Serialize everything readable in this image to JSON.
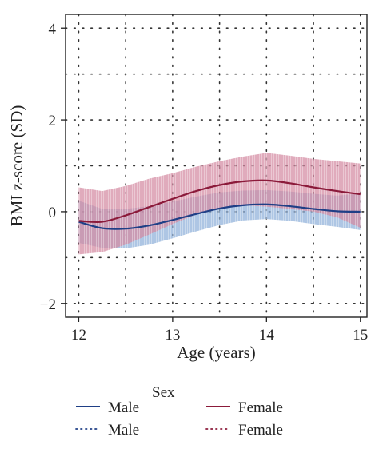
{
  "chart_data": {
    "type": "line",
    "title": "",
    "xlabel": "Age (years)",
    "ylabel": "BMI z-score (SD)",
    "xlim": [
      11.86,
      15.07
    ],
    "ylim": [
      -2.3,
      4.3
    ],
    "xticks": [
      12,
      13,
      14,
      15
    ],
    "yticks": [
      -2,
      0,
      2,
      4
    ],
    "xtick_labels": [
      "12",
      "13",
      "14",
      "15"
    ],
    "ytick_labels": [
      "−2",
      "0",
      "2",
      "4"
    ],
    "grid": "dotted",
    "legend_title": "Sex",
    "legend_position": "bottom",
    "series": [
      {
        "name": "Male",
        "style": "solid",
        "color": "#1f3f86",
        "x": [
          12.0,
          12.25,
          12.5,
          12.75,
          13.0,
          13.25,
          13.5,
          13.75,
          14.0,
          14.25,
          14.5,
          14.75,
          15.0
        ],
        "y": [
          -0.22,
          -0.36,
          -0.37,
          -0.3,
          -0.18,
          -0.05,
          0.07,
          0.14,
          0.16,
          0.12,
          0.06,
          0.01,
          0.0
        ],
        "ci_lower": [
          -0.68,
          -0.79,
          -0.8,
          -0.72,
          -0.58,
          -0.43,
          -0.29,
          -0.19,
          -0.16,
          -0.2,
          -0.27,
          -0.33,
          -0.4
        ],
        "ci_upper": [
          0.24,
          0.06,
          0.06,
          0.12,
          0.22,
          0.33,
          0.42,
          0.46,
          0.47,
          0.44,
          0.39,
          0.35,
          0.4
        ],
        "band_color": "#8fb0d9"
      },
      {
        "name": "Female",
        "style": "solid",
        "color": "#8b1a3a",
        "x": [
          12.0,
          12.25,
          12.5,
          12.75,
          13.0,
          13.25,
          13.5,
          13.75,
          14.0,
          14.25,
          14.5,
          14.75,
          15.0
        ],
        "y": [
          -0.2,
          -0.22,
          -0.08,
          0.1,
          0.28,
          0.45,
          0.58,
          0.66,
          0.68,
          0.62,
          0.53,
          0.45,
          0.38
        ],
        "ci_lower": [
          -0.93,
          -0.88,
          -0.72,
          -0.5,
          -0.27,
          -0.06,
          0.08,
          0.14,
          0.11,
          0.06,
          0.0,
          -0.12,
          -0.35
        ],
        "ci_upper": [
          0.53,
          0.45,
          0.56,
          0.72,
          0.84,
          0.98,
          1.1,
          1.2,
          1.28,
          1.22,
          1.15,
          1.1,
          1.05
        ],
        "band_color": "#d48aa2"
      },
      {
        "name": "Male",
        "style": "dotted",
        "color": "#1f3f86",
        "x": [
          12.0,
          15.0
        ],
        "y": [
          0.0,
          0.0
        ]
      },
      {
        "name": "Female",
        "style": "dotted",
        "color": "#8b1a3a",
        "x": [
          12.0,
          15.0
        ],
        "y": [
          0.0,
          0.0
        ]
      }
    ]
  },
  "legend": {
    "title": "Sex",
    "items": [
      {
        "label": "Male",
        "style": "solid",
        "color": "#1f3f86"
      },
      {
        "label": "Female",
        "style": "solid",
        "color": "#8b1a3a"
      },
      {
        "label": "Male",
        "style": "dotted",
        "color": "#1f3f86"
      },
      {
        "label": "Female",
        "style": "dotted",
        "color": "#8b1a3a"
      }
    ]
  }
}
